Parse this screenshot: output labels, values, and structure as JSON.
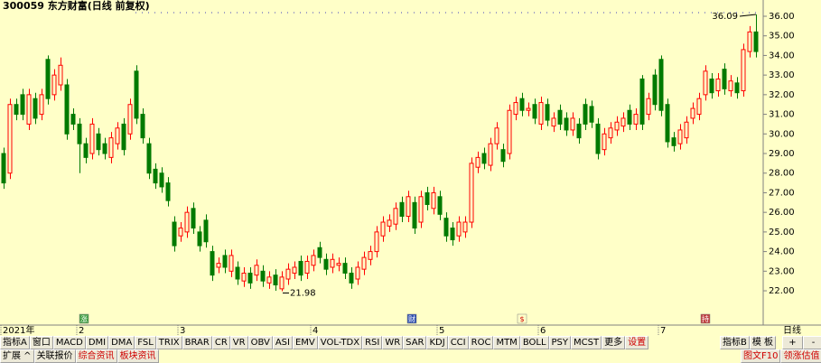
{
  "chart_data": {
    "type": "candlestick",
    "title": "300059 东方财富(日线 前复权)",
    "categories": [
      "2021年",
      null,
      null,
      null,
      null,
      null,
      null,
      null,
      null,
      null,
      null,
      null,
      "2",
      null,
      null,
      null,
      null,
      null,
      null,
      null,
      null,
      null,
      null,
      null,
      null,
      null,
      null,
      null,
      "3",
      null,
      null,
      null,
      null,
      null,
      null,
      null,
      null,
      null,
      null,
      null,
      null,
      null,
      null,
      null,
      null,
      null,
      null,
      null,
      null,
      "4",
      null,
      null,
      null,
      null,
      null,
      null,
      null,
      null,
      null,
      null,
      null,
      null,
      null,
      null,
      null,
      null,
      null,
      null,
      null,
      "5",
      null,
      null,
      null,
      null,
      null,
      null,
      null,
      null,
      null,
      null,
      null,
      null,
      null,
      null,
      null,
      "6",
      null,
      null,
      null,
      null,
      null,
      null,
      null,
      null,
      null,
      null,
      null,
      null,
      null,
      null,
      null,
      null,
      null,
      null,
      "7",
      null,
      null,
      null,
      null,
      null,
      null,
      null,
      null,
      null,
      null,
      null,
      null,
      null,
      null,
      null
    ],
    "open": [
      29,
      28,
      31.5,
      32,
      30.5,
      31.8,
      31,
      33.8,
      32,
      32.5,
      32.5,
      31,
      30.5,
      29.5,
      29,
      30,
      29.5,
      28.8,
      29.5,
      30.5,
      30,
      33.2,
      31,
      29.5,
      28.2,
      28,
      27.5,
      25.5,
      24.8,
      25,
      26.2,
      25,
      25.6,
      24,
      23.2,
      23.8,
      23,
      23.2,
      22.5,
      22.9,
      22.8,
      23,
      22.4,
      22.8,
      22.1,
      22.6,
      22.9,
      23.5,
      22.9,
      23.3,
      24.2,
      23.6,
      23.2,
      23.3,
      23.4,
      22.9,
      22.6,
      23.1,
      23.6,
      24,
      24.8,
      25.3,
      25.4,
      26.5,
      25.8,
      26.5,
      25.5,
      27,
      26.2,
      26.8,
      25.7,
      25.2,
      24.8,
      25,
      25.5,
      28.3,
      29,
      28.4,
      29.5,
      29.2,
      29,
      31,
      31.8,
      31.2,
      31.5,
      30.5,
      31.5,
      30.4,
      31.2,
      30.8,
      30.2,
      30.5,
      31.5,
      31.4,
      30.5,
      29.2,
      29.8,
      30.2,
      30.4,
      31.2,
      30.5,
      32.8,
      31,
      33,
      33.8,
      31.5,
      29.8,
      29.5,
      29.8,
      30.8,
      31,
      32,
      32.8,
      32.2,
      33.3,
      32.2,
      32.6,
      32.2,
      34.2,
      35.2
    ],
    "high": [
      29.3,
      31.8,
      31.8,
      32.3,
      32.3,
      32.1,
      32.3,
      34,
      33.3,
      33.9,
      32.8,
      31.3,
      30.8,
      29.8,
      30.8,
      30.3,
      29.8,
      30.1,
      30.6,
      30.8,
      31.8,
      33.5,
      31.3,
      29.8,
      28.5,
      28.3,
      27.8,
      25.8,
      25.5,
      26.3,
      26.5,
      25.3,
      25.9,
      24.3,
      23.7,
      24.1,
      24.1,
      23.5,
      23.2,
      23.2,
      23.6,
      23.3,
      23,
      23.1,
      23,
      23.4,
      23.5,
      23.8,
      23.8,
      24.1,
      24.5,
      23.9,
      23.9,
      23.7,
      23.7,
      23.2,
      23.5,
      24,
      24.3,
      25.3,
      25.8,
      25.9,
      26.5,
      26.8,
      27.1,
      26.8,
      27.1,
      27.3,
      27.3,
      27.1,
      26,
      25.5,
      25.8,
      25.8,
      28.8,
      29.1,
      29.3,
      29.8,
      30.6,
      29.5,
      31.5,
      31.9,
      32.1,
      31.6,
      31.8,
      31.9,
      31.8,
      31.1,
      31.5,
      31.1,
      31.1,
      30.8,
      31.8,
      31.7,
      30.8,
      30.3,
      30.6,
      30.9,
      31.1,
      31.5,
      31.3,
      33,
      32.1,
      33.3,
      34,
      31.8,
      30.1,
      30.5,
      30.9,
      31.6,
      32.1,
      33.5,
      33.1,
      33.1,
      33.6,
      33,
      32.9,
      34.6,
      35.5,
      36.09
    ],
    "low": [
      27.2,
      27.7,
      30.7,
      30.7,
      30.2,
      30.5,
      30.7,
      31.5,
      31.7,
      32.2,
      29.7,
      30.2,
      28,
      28.5,
      28.7,
      28.9,
      28.7,
      28.5,
      29.2,
      28.9,
      29.7,
      30.5,
      29.5,
      27.7,
      27.2,
      27,
      26.3,
      24,
      24.5,
      24.7,
      24.9,
      24,
      24.2,
      22.5,
      22.9,
      22.9,
      22.7,
      22.3,
      22.2,
      22.1,
      22.5,
      22.2,
      22.1,
      22,
      21.98,
      22.3,
      22.6,
      22.5,
      22.6,
      23,
      23.4,
      22.8,
      22.9,
      23,
      22.6,
      22.1,
      22.3,
      22.8,
      23.3,
      23.7,
      24.5,
      25,
      25.1,
      25.5,
      25.5,
      24.9,
      25.2,
      26.1,
      25.9,
      25.6,
      24.5,
      24.3,
      24.5,
      24.7,
      25.2,
      28,
      28.2,
      28.1,
      29.2,
      28.3,
      28.7,
      30.7,
      30.9,
      30.9,
      30.5,
      30.2,
      30.4,
      30.1,
      30.2,
      29.9,
      29.9,
      29.5,
      30.2,
      30.3,
      28.7,
      28.9,
      29.5,
      29.9,
      30.1,
      30.2,
      30.2,
      30.2,
      30.7,
      31.2,
      30.9,
      29.3,
      29.1,
      29.2,
      29.5,
      30.5,
      30.7,
      31.7,
      31.8,
      31.9,
      32,
      31.9,
      31.8,
      31.9,
      33.9,
      33.9
    ],
    "close": [
      27.5,
      31.5,
      31,
      31,
      32,
      30.8,
      32,
      31.8,
      33,
      33.5,
      30,
      30.5,
      29.5,
      28.8,
      30.5,
      29.2,
      29,
      29.8,
      30.3,
      29.2,
      31.5,
      30.8,
      29.8,
      28,
      27.5,
      27.3,
      26.6,
      24.3,
      25.2,
      26,
      25.2,
      24.3,
      24.5,
      22.8,
      23.4,
      23.2,
      23.8,
      22.6,
      22.9,
      22.4,
      23.3,
      22.5,
      22.7,
      22.3,
      22.7,
      23.1,
      23.2,
      22.8,
      23.5,
      23.8,
      23.7,
      23.1,
      23.6,
      23.4,
      22.9,
      22.4,
      23.2,
      23.7,
      24,
      25,
      25.5,
      25.6,
      26.2,
      25.8,
      26.8,
      25.2,
      26.8,
      26.4,
      27,
      25.9,
      24.8,
      24.6,
      25.5,
      25.5,
      28.5,
      28.8,
      28.5,
      29.5,
      30.3,
      28.6,
      31.2,
      31.6,
      31.2,
      31.3,
      30.8,
      31.6,
      30.7,
      30.8,
      30.5,
      30.2,
      30.8,
      29.8,
      30.5,
      30.6,
      29,
      30,
      30.3,
      30.6,
      30.8,
      30.5,
      31,
      30.5,
      31.8,
      31.5,
      31.2,
      29.6,
      29.4,
      30.2,
      30.6,
      31.3,
      31.8,
      33.2,
      32.1,
      32.8,
      32.3,
      32.7,
      32.1,
      34.3,
      35.2,
      34.2
    ],
    "ylim": [
      20.39,
      36.46
    ],
    "yticks": [
      {
        "value": 22,
        "label": "22.00"
      },
      {
        "value": 23,
        "label": "23.00"
      },
      {
        "value": 24,
        "label": "24.00"
      },
      {
        "value": 25,
        "label": "25.00"
      },
      {
        "value": 26,
        "label": "26.00"
      },
      {
        "value": 27,
        "label": "27.00"
      },
      {
        "value": 28,
        "label": "28.00"
      },
      {
        "value": 29,
        "label": "29.00"
      },
      {
        "value": 30,
        "label": "30.00"
      },
      {
        "value": 31,
        "label": "31.00"
      },
      {
        "value": 32,
        "label": "32.00"
      },
      {
        "value": 33,
        "label": "33.00"
      },
      {
        "value": 34,
        "label": "34.00"
      },
      {
        "value": 35,
        "label": "35.00"
      },
      {
        "value": 36,
        "label": "36.00"
      }
    ],
    "up_color": "#ff0000",
    "down_color": "#007a00",
    "background": "#ffffc8"
  },
  "event_icons": [
    "涨",
    "财",
    "$",
    "持"
  ],
  "period": "日线",
  "zoom_buttons": [
    "+",
    "-"
  ],
  "toolbar": [
    "指标A",
    "窗口",
    "MACD",
    "DMI",
    "DMA",
    "FSL",
    "TRIX",
    "BRAR",
    "CR",
    "VR",
    "OBV",
    "ASI",
    "EMV",
    "VOL-TDX",
    "RSI",
    "WR",
    "SAR",
    "KDJ",
    "CCI",
    "ROC",
    "MTM",
    "BOLL",
    "PSY",
    "MCST",
    "更多",
    "设置"
  ],
  "toolbar_right": [
    "指标B",
    "模 板"
  ],
  "tabs": [
    "扩展 ^",
    "关联报价",
    "综合资讯",
    "板块资讯"
  ],
  "tabs_right": [
    "图文F10",
    "领涨估值"
  ]
}
